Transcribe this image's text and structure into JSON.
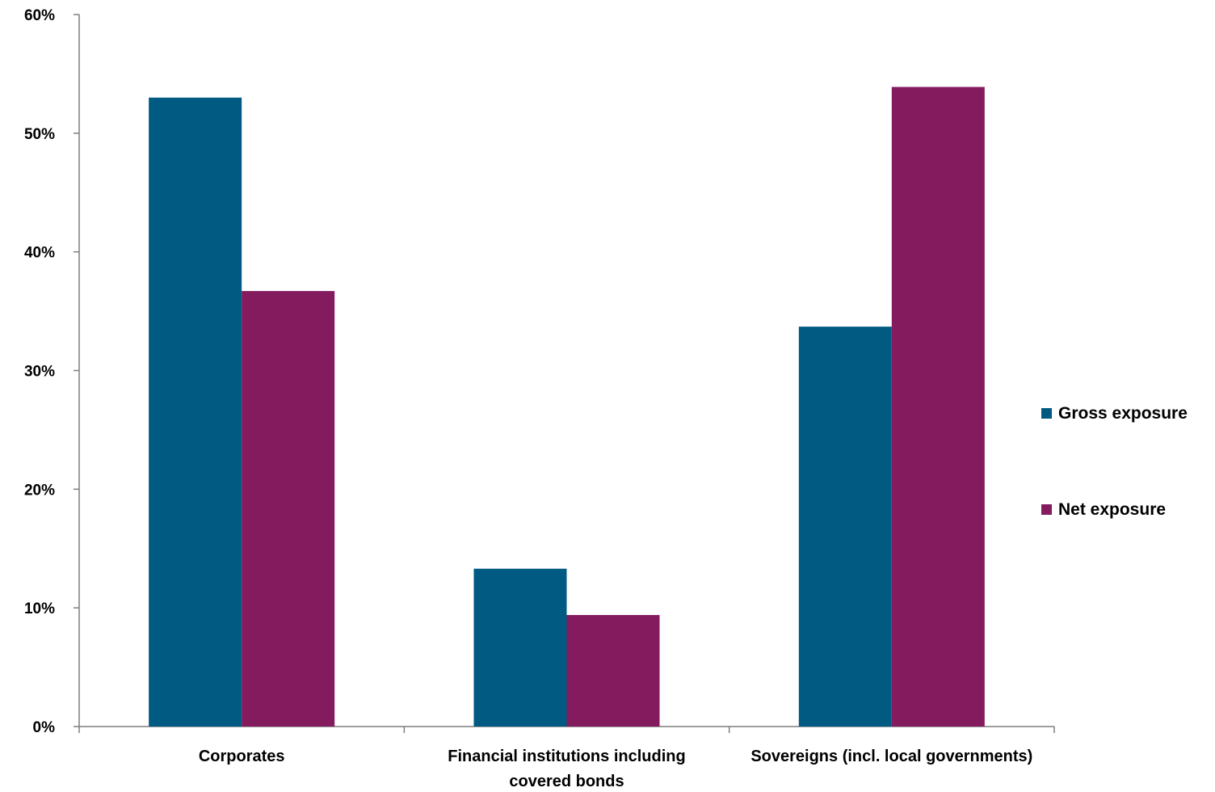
{
  "colors": {
    "gross": "#005a82",
    "net": "#841b5f",
    "axis": "#7f7f7f"
  },
  "chart_data": {
    "type": "bar",
    "categories": [
      [
        "Corporates"
      ],
      [
        "Financial institutions including",
        "covered bonds"
      ],
      [
        "Sovereigns (incl. local governments)"
      ]
    ],
    "series": [
      {
        "name": "Gross exposure",
        "values": [
          53.0,
          13.3,
          33.7
        ]
      },
      {
        "name": "Net exposure",
        "values": [
          36.7,
          9.4,
          53.9
        ]
      }
    ],
    "title": "",
    "xlabel": "",
    "ylabel": "",
    "ylim": [
      0,
      60
    ],
    "y_ticks": [
      "0%",
      "10%",
      "20%",
      "30%",
      "40%",
      "50%",
      "60%"
    ],
    "grid": false,
    "legend_position": "right"
  }
}
